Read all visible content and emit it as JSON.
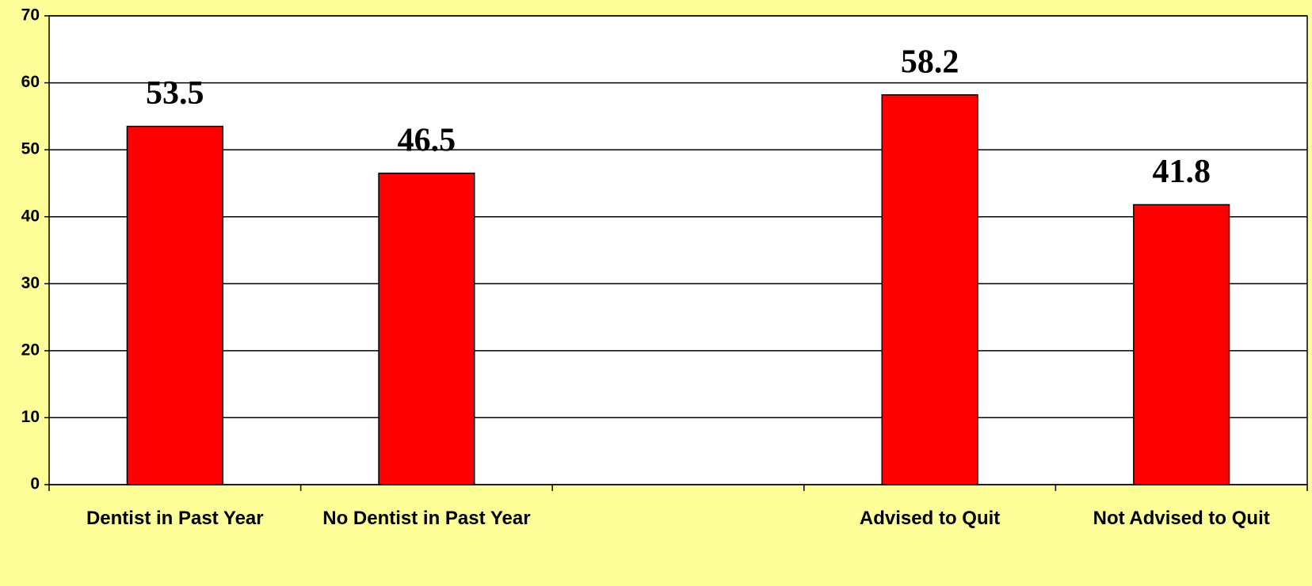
{
  "chart_data": {
    "type": "bar",
    "categories": [
      "Dentist in Past Year",
      "No Dentist in Past Year",
      null,
      "Advised to Quit",
      "Not Advised to Quit"
    ],
    "values": [
      53.5,
      46.5,
      null,
      58.2,
      41.8
    ],
    "color": "#ff0000",
    "ylim": [
      0,
      70
    ],
    "yticks": [
      0,
      10,
      20,
      30,
      40,
      50,
      60,
      70
    ],
    "grid": true
  }
}
